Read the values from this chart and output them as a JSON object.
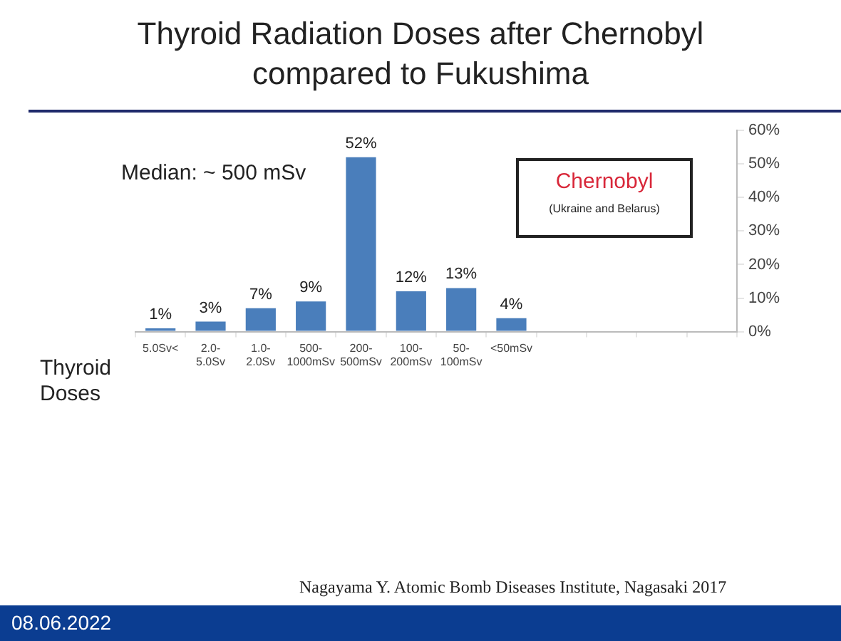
{
  "chart_data": {
    "type": "bar",
    "title": "Thyroid Radiation Doses after Chernobyl compared to Fukushima",
    "xlabel": "Thyroid Doses",
    "categories": [
      "5.0Sv<",
      "2.0-5.0Sv",
      "1.0-2.0Sv",
      "500-1000mSv",
      "200-500mSv",
      "100-200mSv",
      "50-100mSv",
      "<50mSv",
      null,
      null,
      null,
      null
    ],
    "values": [
      1,
      3,
      7,
      9,
      52,
      12,
      13,
      4,
      null,
      null,
      null,
      null
    ],
    "value_labels": [
      "1%",
      "3%",
      "7%",
      "9%",
      "52%",
      "12%",
      "13%",
      "4%",
      null,
      null,
      null,
      null
    ],
    "color": "#4a7ebb",
    "ylim": [
      0,
      60
    ],
    "yticks": [
      {
        "value": 0,
        "label": "0%"
      },
      {
        "value": 10,
        "label": "10%"
      },
      {
        "value": 20,
        "label": "20%"
      },
      {
        "value": 30,
        "label": "30%"
      },
      {
        "value": 40,
        "label": "40%"
      },
      {
        "value": 50,
        "label": "50%"
      },
      {
        "value": 60,
        "label": "60%"
      }
    ],
    "grid": false,
    "legend": false,
    "annotations": [
      "Median: ~ 500 mSv",
      "Chernobyl",
      "(Ukraine and Belarus)",
      "Nagayama Y. Atomic Bomb Diseases Institute, Nagasaki 2017",
      "08.06.2022"
    ]
  }
}
